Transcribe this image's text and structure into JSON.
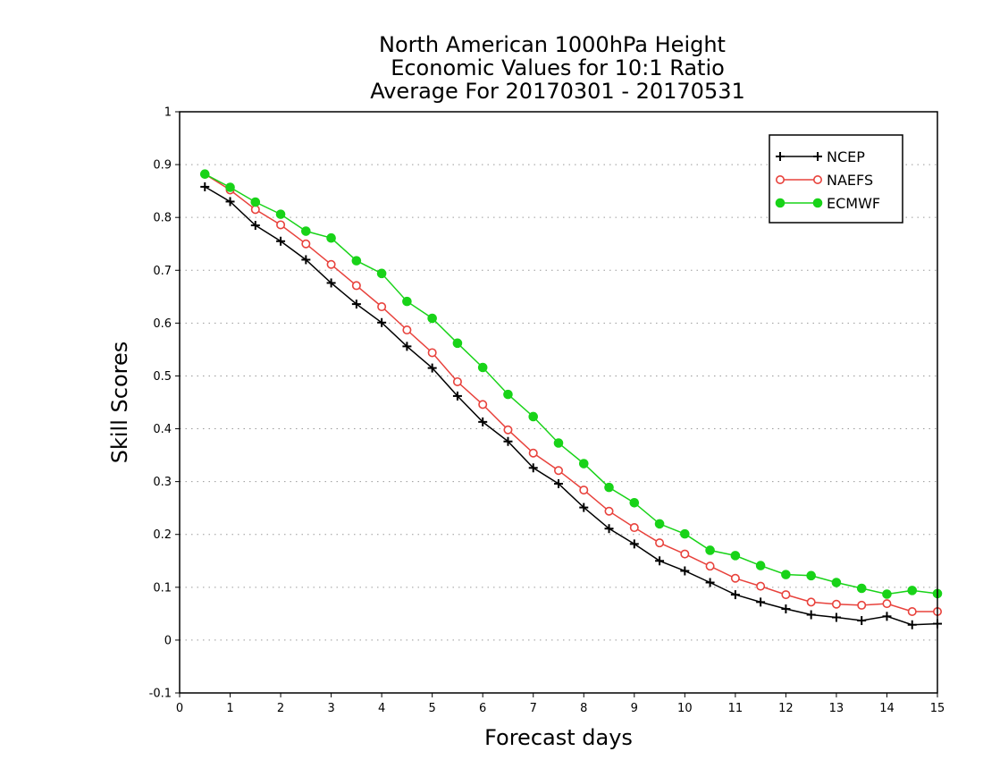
{
  "chart_data": {
    "type": "line",
    "title_lines": [
      "North American 1000hPa Height",
      "Economic Values for 10:1 Ratio",
      "Average For 20170301 - 20170531"
    ],
    "xlabel": "Forecast days",
    "ylabel": "Skill Scores",
    "xlim": [
      0,
      15
    ],
    "ylim": [
      -0.1,
      1
    ],
    "x_ticks": [
      "0",
      "1",
      "2",
      "3",
      "4",
      "5",
      "6",
      "7",
      "8",
      "9",
      "10",
      "11",
      "12",
      "13",
      "14",
      "15"
    ],
    "y_ticks": [
      "-0.1",
      "0",
      "0.1",
      "0.2",
      "0.3",
      "0.4",
      "0.5",
      "0.6",
      "0.7",
      "0.8",
      "0.9",
      "1"
    ],
    "grid": "horizontal dotted",
    "legend_position": "top-right",
    "x": [
      0.5,
      1,
      1.5,
      2,
      2.5,
      3,
      3.5,
      4,
      4.5,
      5,
      5.5,
      6,
      6.5,
      7,
      7.5,
      8,
      8.5,
      9,
      9.5,
      10,
      10.5,
      11,
      11.5,
      12,
      12.5,
      13,
      13.5,
      14,
      14.5,
      15
    ],
    "series": [
      {
        "name": "NCEP",
        "color": "#000000",
        "marker": "plus",
        "values": [
          0.858,
          0.83,
          0.785,
          0.755,
          0.72,
          0.676,
          0.636,
          0.601,
          0.556,
          0.515,
          0.462,
          0.413,
          0.376,
          0.326,
          0.296,
          0.251,
          0.211,
          0.182,
          0.15,
          0.131,
          0.109,
          0.086,
          0.072,
          0.059,
          0.048,
          0.043,
          0.037,
          0.045,
          0.029,
          0.031
        ]
      },
      {
        "name": "NAEFS",
        "color": "#e8423c",
        "marker": "open-circle",
        "values": [
          0.882,
          0.852,
          0.815,
          0.786,
          0.75,
          0.711,
          0.671,
          0.631,
          0.587,
          0.544,
          0.489,
          0.446,
          0.398,
          0.354,
          0.321,
          0.284,
          0.244,
          0.213,
          0.184,
          0.163,
          0.14,
          0.117,
          0.102,
          0.086,
          0.072,
          0.068,
          0.066,
          0.069,
          0.054,
          0.054
        ]
      },
      {
        "name": "ECMWF",
        "color": "#18d318",
        "marker": "filled-circle",
        "values": [
          0.882,
          0.857,
          0.829,
          0.806,
          0.774,
          0.761,
          0.718,
          0.694,
          0.641,
          0.609,
          0.562,
          0.516,
          0.465,
          0.423,
          0.373,
          0.334,
          0.289,
          0.26,
          0.22,
          0.201,
          0.17,
          0.16,
          0.141,
          0.124,
          0.122,
          0.109,
          0.098,
          0.087,
          0.094,
          0.088
        ]
      }
    ]
  }
}
